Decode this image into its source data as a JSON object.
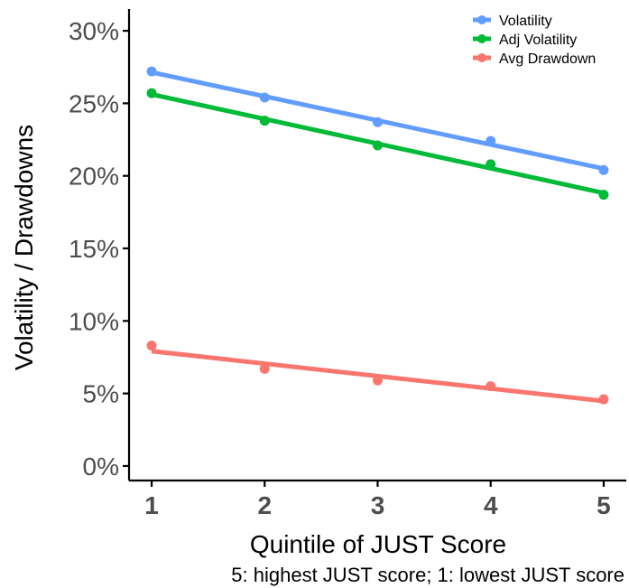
{
  "chart_data": {
    "type": "line",
    "xlabel": "Quintile of JUST Score",
    "ylabel": "Volatility / Drawdowns",
    "caption": "5: highest JUST score; 1: lowest JUST score",
    "x": [
      1,
      2,
      3,
      4,
      5
    ],
    "x_tick_labels": [
      "1",
      "2",
      "3",
      "4",
      "5"
    ],
    "y_ticks": [
      0,
      5,
      10,
      15,
      20,
      25,
      30
    ],
    "y_tick_labels": [
      "0%",
      "5%",
      "10%",
      "15%",
      "20%",
      "25%",
      "30%"
    ],
    "xlim": [
      0.8,
      5.2
    ],
    "ylim": [
      -1.0,
      31.5
    ],
    "grid": false,
    "legend_position": "top-right",
    "series": [
      {
        "name": "Volatility",
        "color": "#619CFF",
        "values": [
          27.2,
          25.4,
          23.7,
          22.4,
          20.4
        ]
      },
      {
        "name": "Adj Volatility",
        "color": "#00BA38",
        "values": [
          25.7,
          23.8,
          22.1,
          20.8,
          18.7
        ]
      },
      {
        "name": "Avg Drawdown",
        "color": "#F8766D",
        "values": [
          8.3,
          6.7,
          5.9,
          5.5,
          4.6
        ]
      }
    ]
  }
}
